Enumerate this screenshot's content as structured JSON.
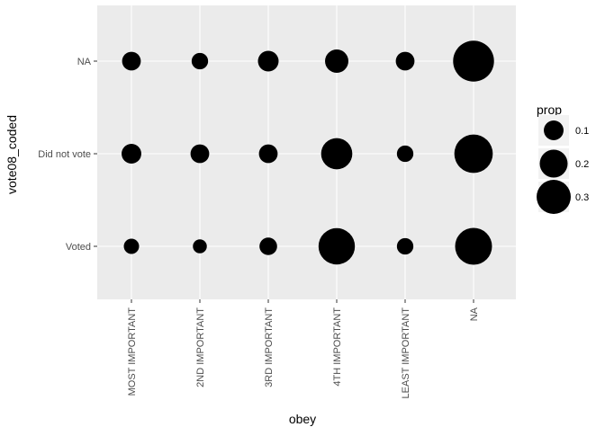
{
  "chart_data": {
    "type": "scatter",
    "subtype": "bubble",
    "xlabel": "obey",
    "ylabel": "vote08_coded",
    "x_categories": [
      "MOST IMPORTANT",
      "2ND IMPORTANT",
      "3RD IMPORTANT",
      "4TH IMPORTANT",
      "LEAST IMPORTANT",
      "NA"
    ],
    "y_categories": [
      "Voted",
      "Did not vote",
      "NA"
    ],
    "size_variable": "prop",
    "points": [
      {
        "x": "MOST IMPORTANT",
        "y": "Voted",
        "prop": 0.06
      },
      {
        "x": "2ND IMPORTANT",
        "y": "Voted",
        "prop": 0.05
      },
      {
        "x": "3RD IMPORTANT",
        "y": "Voted",
        "prop": 0.08
      },
      {
        "x": "4TH IMPORTANT",
        "y": "Voted",
        "prop": 0.34
      },
      {
        "x": "LEAST IMPORTANT",
        "y": "Voted",
        "prop": 0.07
      },
      {
        "x": "NA",
        "y": "Voted",
        "prop": 0.35
      },
      {
        "x": "MOST IMPORTANT",
        "y": "Did not vote",
        "prop": 0.1
      },
      {
        "x": "2ND IMPORTANT",
        "y": "Did not vote",
        "prop": 0.09
      },
      {
        "x": "3RD IMPORTANT",
        "y": "Did not vote",
        "prop": 0.09
      },
      {
        "x": "4TH IMPORTANT",
        "y": "Did not vote",
        "prop": 0.25
      },
      {
        "x": "LEAST IMPORTANT",
        "y": "Did not vote",
        "prop": 0.07
      },
      {
        "x": "NA",
        "y": "Did not vote",
        "prop": 0.38
      },
      {
        "x": "MOST IMPORTANT",
        "y": "NA",
        "prop": 0.09
      },
      {
        "x": "2ND IMPORTANT",
        "y": "NA",
        "prop": 0.07
      },
      {
        "x": "3RD IMPORTANT",
        "y": "NA",
        "prop": 0.11
      },
      {
        "x": "4TH IMPORTANT",
        "y": "NA",
        "prop": 0.14
      },
      {
        "x": "LEAST IMPORTANT",
        "y": "NA",
        "prop": 0.09
      },
      {
        "x": "NA",
        "y": "NA",
        "prop": 0.43
      }
    ],
    "legend": {
      "title": "prop",
      "position": "right",
      "entries": [
        {
          "label": "0.1",
          "prop": 0.1
        },
        {
          "label": "0.2",
          "prop": 0.2
        },
        {
          "label": "0.3",
          "prop": 0.3
        }
      ]
    },
    "grid": true,
    "colors": {
      "panel_background": "#EBEBEB",
      "grid_major": "#FFFFFF",
      "point_fill": "#000000",
      "tick_text": "#4D4D4D",
      "tick_mark": "#333333"
    }
  }
}
